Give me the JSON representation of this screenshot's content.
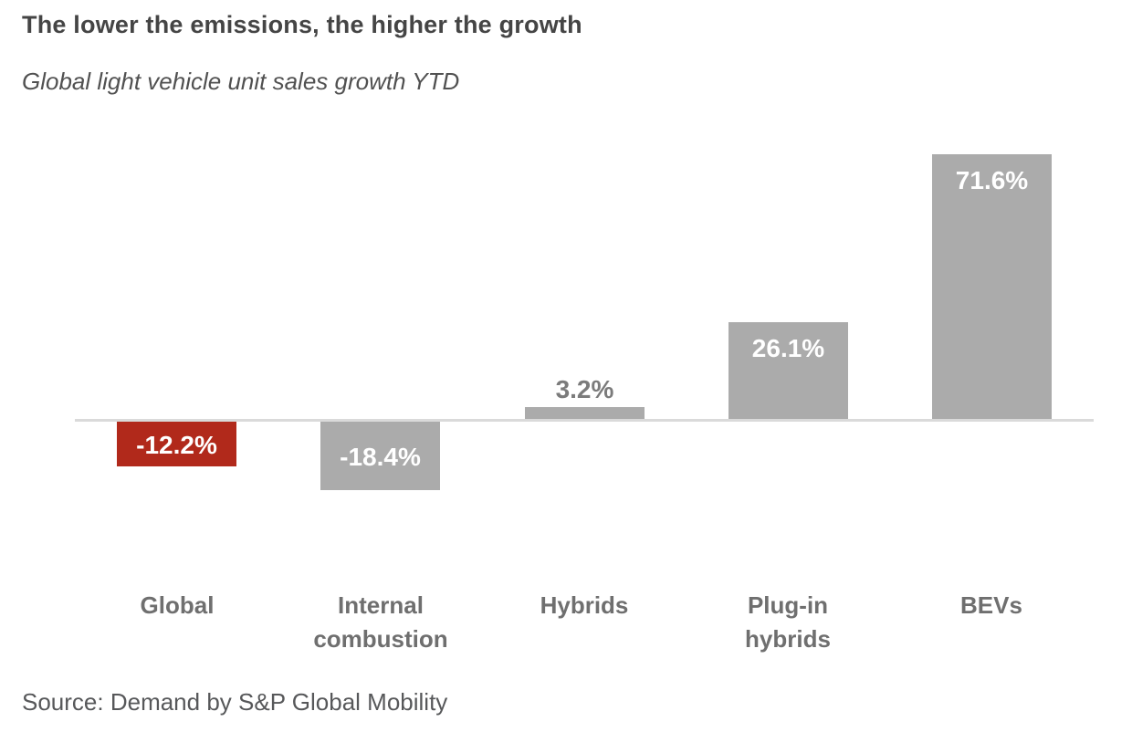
{
  "header": {
    "title": "The lower the emissions, the higher the growth",
    "subtitle": "Global light vehicle unit sales growth YTD"
  },
  "footer": {
    "source": "Source: Demand by S&P Global Mobility"
  },
  "chart_data": {
    "type": "bar",
    "title": "The lower the emissions, the higher the growth",
    "subtitle": "Global light vehicle unit sales growth YTD",
    "categories": [
      "Global",
      "Internal combustion",
      "Hybrids",
      "Plug-in hybrids",
      "BEVs"
    ],
    "category_display": [
      "Global",
      "Internal\ncombustion",
      "Hybrids",
      "Plug-in\nhybrids",
      "BEVs"
    ],
    "values": [
      -12.2,
      -18.4,
      3.2,
      26.1,
      71.6
    ],
    "data_labels": [
      "-12.2%",
      "-18.4%",
      "3.2%",
      "26.1%",
      "71.6%"
    ],
    "unit": "%",
    "baseline": 0,
    "ylim": [
      -25,
      80
    ],
    "grid": false,
    "legend": "none",
    "highlight_index": 0,
    "colors": {
      "bar_default": "#ABABAB",
      "bar_highlight": "#B1291B",
      "label_inside": "#FFFFFF",
      "label_outside": "#7B7B7B",
      "axis_line": "#DADADA",
      "category_label": "#6F6F6F"
    },
    "source": "Source: Demand by S&P Global Mobility"
  }
}
